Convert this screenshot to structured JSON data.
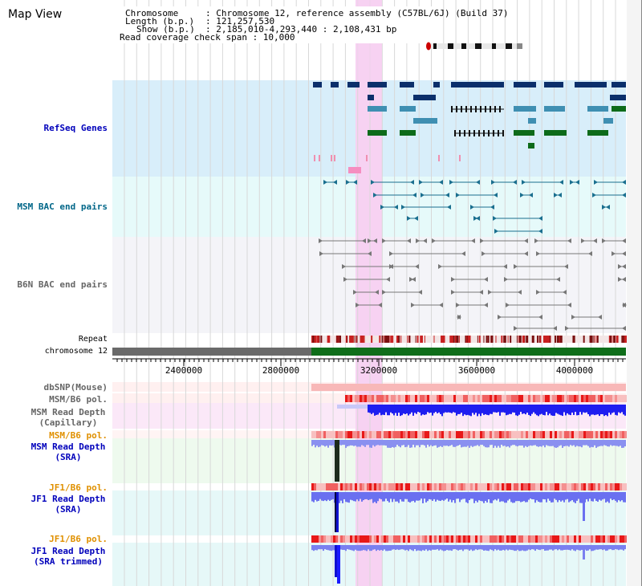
{
  "title": "Map View",
  "info": {
    "line1_key": "Chromosome",
    "line1_val": ": Chromosome 12, reference assembly (C57BL/6J) (Build 37)",
    "line2_key": "Length (b.p.)",
    "line2_val": ": 121,257,530",
    "line3_key": "Show (b.p.)",
    "line3_val": ": 2,185,010-4,293,440 : 2,108,431 bp",
    "line4": "Read coverage check span : 10,000"
  },
  "tracks": {
    "refseq": "RefSeq Genes",
    "msm_bac": "MSM BAC end pairs",
    "b6n_bac": "B6N BAC end pairs",
    "repeat": "Repeat",
    "chromosome": "chromosome 12",
    "dbsnp": "dbSNP(Mouse)",
    "msm_pol": "MSM/B6 pol.",
    "msm_depth_cap": "MSM Read Depth\n(Capillary)",
    "msm_pol2": "MSM/B6 pol.",
    "msm_depth_sra": "MSM Read Depth\n(SRA)",
    "jf1_pol": "JF1/B6 pol.",
    "jf1_depth_sra": "JF1 Read Depth\n(SRA)",
    "jf1_pol2": "JF1/B6 pol.",
    "jf1_depth_trim": "JF1 Read Depth\n(SRA trimmed)"
  },
  "axis": {
    "ticks": [
      "2400000",
      "2800000",
      "3200000",
      "3600000",
      "4000000"
    ]
  },
  "colors": {
    "refseq_bg": "#d8eefa",
    "bac_bg": "#e6fafa",
    "b6n_bg": "#f4f4f8",
    "highlight": "#f7d2f2",
    "gene_dark": "#0b2f6b",
    "gene_teal": "#3f8fb2",
    "gene_green": "#0d6b1a",
    "chrom_green": "#0f6e1a",
    "chrom_grey": "#6a6a6a",
    "label_blue": "#0000bb",
    "label_teal": "#006688",
    "label_grey": "#666666",
    "label_orange": "#e09000",
    "depth_blue": "#2233ee"
  }
}
